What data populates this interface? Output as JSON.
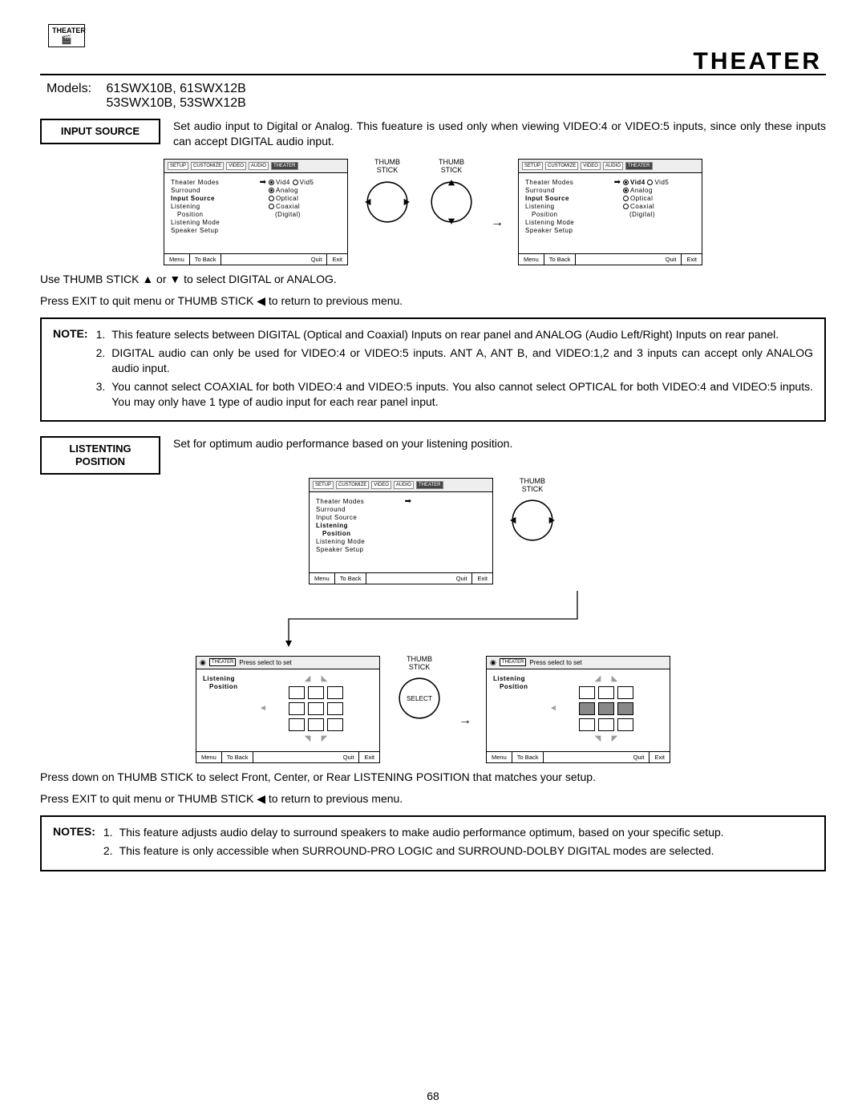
{
  "header": {
    "badge_label": "THEATER",
    "title": "THEATER",
    "models_label": "Models:",
    "models_line1": "61SWX10B, 61SWX12B",
    "models_line2": "53SWX10B, 53SWX12B"
  },
  "input_source": {
    "label": "INPUT SOURCE",
    "desc": "Set audio input to Digital or Analog.  This fueature is used only when viewing VIDEO:4 or VIDEO:5 inputs, since only these inputs can accept DIGITAL audio input.",
    "thumb_label": "THUMB\nSTICK",
    "instr1": "Use THUMB STICK ▲ or ▼ to select DIGITAL or ANALOG.",
    "instr2": "Press EXIT to quit menu or THUMB STICK ◀ to return to previous menu."
  },
  "osd_icons": [
    "SETUP",
    "CUSTOMIZE",
    "VIDEO",
    "AUDIO",
    "THEATER"
  ],
  "osd_menu": {
    "items": [
      "Theater Modes",
      "Surround",
      "Input Source",
      "Listening",
      "Position",
      "Listening Mode",
      "Speaker Setup"
    ],
    "bold_idx": 2,
    "right1": [
      {
        "filled": true,
        "label": "Vid4"
      },
      {
        "filled": false,
        "label": "Vid5"
      },
      {
        "filled": true,
        "label": "Analog"
      },
      {
        "filled": false,
        "label": "Optical"
      },
      {
        "filled": false,
        "label": "Coaxial"
      }
    ],
    "right1_sub": "(Digital)",
    "right2": [
      {
        "filled": true,
        "label": "Vid4",
        "bold": true
      },
      {
        "filled": false,
        "label": "Vid5"
      },
      {
        "filled": true,
        "label": "Analog"
      },
      {
        "filled": false,
        "label": "Optical"
      },
      {
        "filled": false,
        "label": "Coaxial"
      }
    ],
    "right2_sub": "(Digital)"
  },
  "osd_footer": {
    "menu": "Menu",
    "back": "To Back",
    "quit": "Quit",
    "exit": "Exit"
  },
  "note1": {
    "label": "NOTE:",
    "items": [
      "This feature selects between DIGITAL (Optical and Coaxial) Inputs on rear panel and ANALOG (Audio Left/Right) Inputs on rear panel.",
      "DIGITAL audio can only be used for VIDEO:4 or VIDEO:5 inputs.  ANT A, ANT B, and VIDEO:1,2 and 3 inputs can accept only ANALOG audio input.",
      "You cannot select COAXIAL for both VIDEO:4 and VIDEO:5 inputs.  You also cannot select OPTICAL for both VIDEO:4 and VIDEO:5 inputs.  You may only have 1 type of audio input for each rear panel input."
    ]
  },
  "listening": {
    "label": "LISTENTING POSITION",
    "desc": "Set for optimum audio performance based on your listening position.",
    "thumb_label": "THUMB\nSTICK",
    "select_label": "SELECT",
    "instr1": "Press down on THUMB STICK to select Front, Center, or Rear LISTENING POSITION that matches your setup.",
    "instr2": "Press EXIT to quit menu or THUMB STICK ◀ to return to previous menu."
  },
  "osd_menu2": {
    "items": [
      "Theater Modes",
      "Surround",
      "Input Source",
      "Listening",
      "Position",
      "Listening Mode",
      "Speaker Setup"
    ],
    "bold_lines": [
      3,
      4
    ]
  },
  "lp_box": {
    "theater": "THEATER",
    "press": "Press select to set",
    "lp_label": "Listening",
    "pos_label": "Position"
  },
  "note2": {
    "label": "NOTES:",
    "items": [
      "This feature adjusts audio delay to surround speakers to make audio performance optimum, based on your specific setup.",
      "This feature is only accessible when SURROUND-PRO LOGIC and SURROUND-DOLBY DIGITAL modes are selected."
    ]
  },
  "page": "68"
}
